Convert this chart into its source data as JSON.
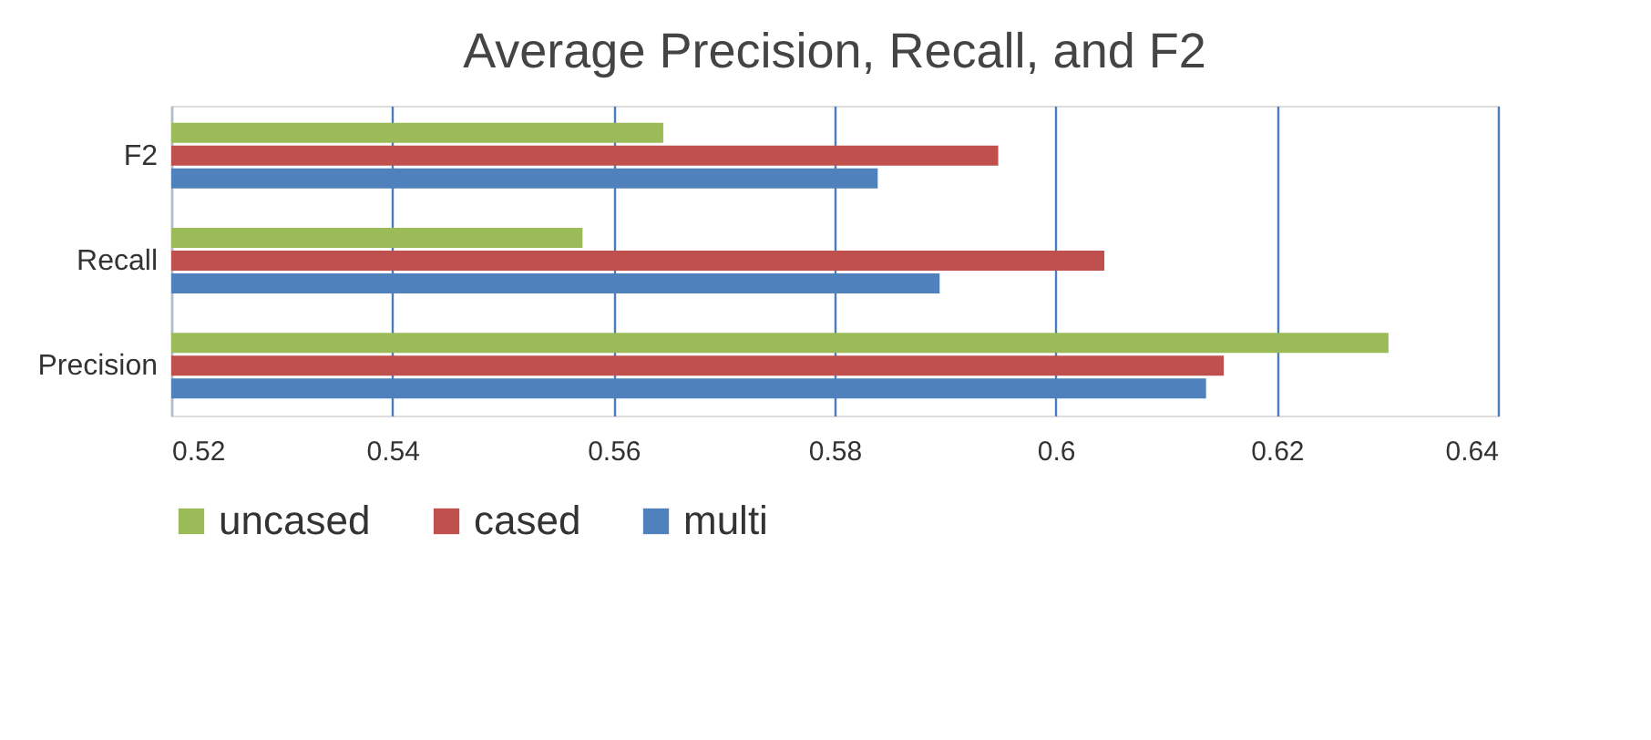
{
  "chart_data": {
    "type": "bar",
    "orientation": "horizontal",
    "title": "Average Precision, Recall, and F2",
    "categories": [
      "F2",
      "Recall",
      "Precision"
    ],
    "series": [
      {
        "name": "uncased",
        "color": "#9bbb59",
        "values": [
          0.5645,
          0.5572,
          0.6301
        ]
      },
      {
        "name": "cased",
        "color": "#c0504d",
        "values": [
          0.5948,
          0.6044,
          0.6152
        ]
      },
      {
        "name": "multi",
        "color": "#4f81bd",
        "values": [
          0.5839,
          0.5895,
          0.6136
        ]
      }
    ],
    "xlim": [
      0.52,
      0.64
    ],
    "xticks": [
      0.52,
      0.54,
      0.56,
      0.58,
      0.6,
      0.62,
      0.64
    ],
    "grid": "x",
    "legend": "bottom"
  }
}
